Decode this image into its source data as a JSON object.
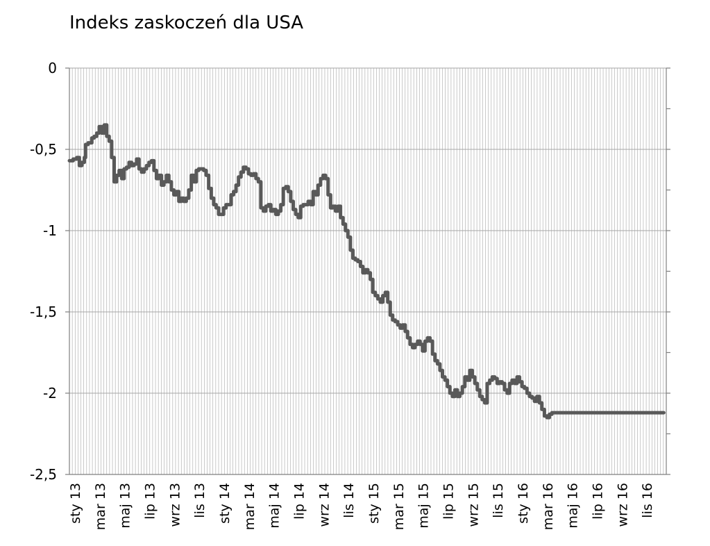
{
  "chart_data": {
    "type": "line",
    "title": "Indeks zaskoczeń dla USA",
    "xlabel": "",
    "ylabel": "",
    "ylim": [
      -2.5,
      0
    ],
    "yticks": [
      "0",
      "-0,5",
      "-1",
      "-1,5",
      "-2",
      "-2,5"
    ],
    "ytick_values": [
      0,
      -0.5,
      -1,
      -1.5,
      -2,
      -2.5
    ],
    "grid": true,
    "legend": "none",
    "colors": {
      "line": "#595959",
      "grid": "#a6a6a6",
      "axis": "#7f7f7f"
    },
    "x_labels": [
      "sty 13",
      "mar 13",
      "maj 13",
      "lip 13",
      "wrz 13",
      "lis 13",
      "sty 14",
      "mar 14",
      "maj 14",
      "lip 14",
      "wrz 14",
      "lis 14",
      "sty 15",
      "mar 15",
      "maj 15",
      "lip 15",
      "wrz 15",
      "lis 15",
      "sty 16",
      "mar 16",
      "maj 16",
      "lip 16",
      "wrz 16",
      "lis 16"
    ],
    "x_label_months": [
      0,
      2,
      4,
      6,
      8,
      10,
      12,
      14,
      16,
      18,
      20,
      22,
      24,
      26,
      28,
      30,
      32,
      34,
      36,
      38,
      40,
      42,
      44,
      46
    ],
    "x_range_months": [
      0,
      48
    ],
    "series": [
      {
        "name": "",
        "x": [
          0,
          0.3,
          0.6,
          0.8,
          1.0,
          1.2,
          1.3,
          1.5,
          1.8,
          2.0,
          2.2,
          2.4,
          2.6,
          2.8,
          3.0,
          3.2,
          3.4,
          3.6,
          3.8,
          4.0,
          4.2,
          4.4,
          4.6,
          4.8,
          5.0,
          5.2,
          5.4,
          5.6,
          5.8,
          6.0,
          6.2,
          6.4,
          6.6,
          6.8,
          7.0,
          7.2,
          7.4,
          7.6,
          7.8,
          8.0,
          8.2,
          8.4,
          8.6,
          8.8,
          9.0,
          9.2,
          9.4,
          9.6,
          9.8,
          10.0,
          10.2,
          10.4,
          10.6,
          10.8,
          11.0,
          11.2,
          11.4,
          11.6,
          11.8,
          12.0,
          12.2,
          12.4,
          12.6,
          12.8,
          13.0,
          13.2,
          13.4,
          13.6,
          13.8,
          14.0,
          14.2,
          14.4,
          14.6,
          14.8,
          15.0,
          15.2,
          15.4,
          15.6,
          15.8,
          16.0,
          16.2,
          16.4,
          16.6,
          16.8,
          17.0,
          17.2,
          17.4,
          17.6,
          17.8,
          18.0,
          18.2,
          18.4,
          18.6,
          18.8,
          19.0,
          19.2,
          19.4,
          19.6,
          19.8,
          20.0,
          20.2,
          20.4,
          20.6,
          20.8,
          21.0,
          21.2,
          21.4,
          21.6,
          21.8,
          22.0,
          22.2,
          22.4,
          22.6,
          22.8,
          23.0,
          23.2,
          23.4,
          23.6,
          23.8,
          24.0,
          24.2,
          24.4,
          24.6,
          24.8,
          25.0,
          25.2,
          25.4,
          25.6,
          25.8,
          26.0,
          26.2,
          26.4,
          26.6,
          26.8,
          27.0,
          27.2,
          27.4,
          27.6,
          27.8,
          28.0,
          28.2,
          28.4,
          28.6,
          28.8,
          29.0,
          29.2,
          29.4,
          29.6,
          29.8,
          30.0,
          30.2,
          30.4,
          30.6,
          30.8,
          31.0,
          31.2,
          31.4,
          31.6,
          31.8,
          32.0,
          32.2,
          32.4,
          32.6,
          32.8,
          33.0,
          33.2,
          33.4,
          33.6,
          33.8,
          34.0,
          34.2,
          34.4,
          34.6,
          34.8,
          35.0,
          35.2,
          35.4,
          35.6,
          35.8,
          36.0,
          36.2,
          36.4,
          36.6,
          36.8,
          37.0,
          37.2,
          37.4,
          37.6,
          37.8,
          38.0,
          38.2,
          38.4,
          38.6,
          38.8,
          39.0,
          39.2,
          39.4,
          39.6,
          39.8,
          40.0,
          40.2,
          40.4,
          40.6,
          40.8,
          41.0,
          41.2,
          41.4,
          41.6,
          41.8,
          42.0,
          42.2,
          42.4,
          42.6,
          42.8,
          43.0,
          43.2,
          43.4,
          43.6,
          43.8,
          44.0,
          44.2,
          44.4,
          44.6,
          44.8,
          45.0,
          45.2,
          45.4,
          45.6,
          45.8,
          46.0,
          46.2,
          46.4,
          46.6,
          46.8,
          47.0,
          47.2,
          47.4,
          47.6,
          47.8
        ],
        "values": [
          -0.57,
          -0.56,
          -0.55,
          -0.6,
          -0.58,
          -0.55,
          -0.47,
          -0.46,
          -0.43,
          -0.42,
          -0.4,
          -0.36,
          -0.4,
          -0.35,
          -0.42,
          -0.45,
          -0.55,
          -0.7,
          -0.66,
          -0.63,
          -0.68,
          -0.62,
          -0.61,
          -0.58,
          -0.6,
          -0.59,
          -0.56,
          -0.62,
          -0.64,
          -0.62,
          -0.6,
          -0.58,
          -0.57,
          -0.63,
          -0.68,
          -0.66,
          -0.72,
          -0.7,
          -0.66,
          -0.7,
          -0.75,
          -0.78,
          -0.76,
          -0.82,
          -0.8,
          -0.82,
          -0.8,
          -0.75,
          -0.66,
          -0.7,
          -0.63,
          -0.62,
          -0.62,
          -0.63,
          -0.66,
          -0.74,
          -0.8,
          -0.84,
          -0.86,
          -0.9,
          -0.9,
          -0.86,
          -0.84,
          -0.84,
          -0.78,
          -0.76,
          -0.72,
          -0.67,
          -0.64,
          -0.61,
          -0.62,
          -0.65,
          -0.66,
          -0.65,
          -0.68,
          -0.7,
          -0.86,
          -0.88,
          -0.85,
          -0.84,
          -0.88,
          -0.87,
          -0.9,
          -0.88,
          -0.84,
          -0.74,
          -0.73,
          -0.76,
          -0.82,
          -0.87,
          -0.9,
          -0.92,
          -0.85,
          -0.84,
          -0.84,
          -0.82,
          -0.84,
          -0.76,
          -0.78,
          -0.72,
          -0.68,
          -0.66,
          -0.68,
          -0.78,
          -0.86,
          -0.85,
          -0.88,
          -0.85,
          -0.92,
          -0.96,
          -1.0,
          -1.04,
          -1.12,
          -1.17,
          -1.18,
          -1.19,
          -1.22,
          -1.26,
          -1.24,
          -1.26,
          -1.3,
          -1.38,
          -1.4,
          -1.42,
          -1.44,
          -1.4,
          -1.38,
          -1.44,
          -1.52,
          -1.55,
          -1.56,
          -1.58,
          -1.6,
          -1.58,
          -1.62,
          -1.66,
          -1.7,
          -1.72,
          -1.7,
          -1.68,
          -1.7,
          -1.74,
          -1.68,
          -1.66,
          -1.68,
          -1.76,
          -1.8,
          -1.82,
          -1.86,
          -1.9,
          -1.92,
          -1.96,
          -2.0,
          -2.02,
          -1.98,
          -2.02,
          -2.0,
          -1.96,
          -1.9,
          -1.92,
          -1.86,
          -1.9,
          -1.94,
          -1.98,
          -2.02,
          -2.04,
          -2.06,
          -1.94,
          -1.92,
          -1.9,
          -1.91,
          -1.94,
          -1.93,
          -1.94,
          -1.98,
          -2.0,
          -1.94,
          -1.92,
          -1.94,
          -1.9,
          -1.93,
          -1.96,
          -1.97,
          -2.0,
          -2.02,
          -2.03,
          -2.05,
          -2.02,
          -2.06,
          -2.1,
          -2.14,
          -2.15,
          -2.13,
          -2.12,
          -2.12,
          -2.12,
          -2.12,
          -2.12,
          -2.12,
          -2.12,
          -2.12,
          -2.12,
          -2.12,
          -2.12,
          -2.12,
          -2.12,
          -2.12,
          -2.12,
          -2.12,
          -2.12,
          -2.12,
          -2.12,
          -2.12,
          -2.12,
          -2.12,
          -2.12,
          -2.12,
          -2.12,
          -2.12,
          -2.12,
          -2.12,
          -2.12,
          -2.12,
          -2.12,
          -2.12,
          -2.12,
          -2.12,
          -2.12,
          -2.12,
          -2.12,
          -2.12,
          -2.12,
          -2.12,
          -2.12,
          -2.12,
          -2.12,
          -2.12,
          -2.12,
          -2.12
        ]
      }
    ]
  }
}
